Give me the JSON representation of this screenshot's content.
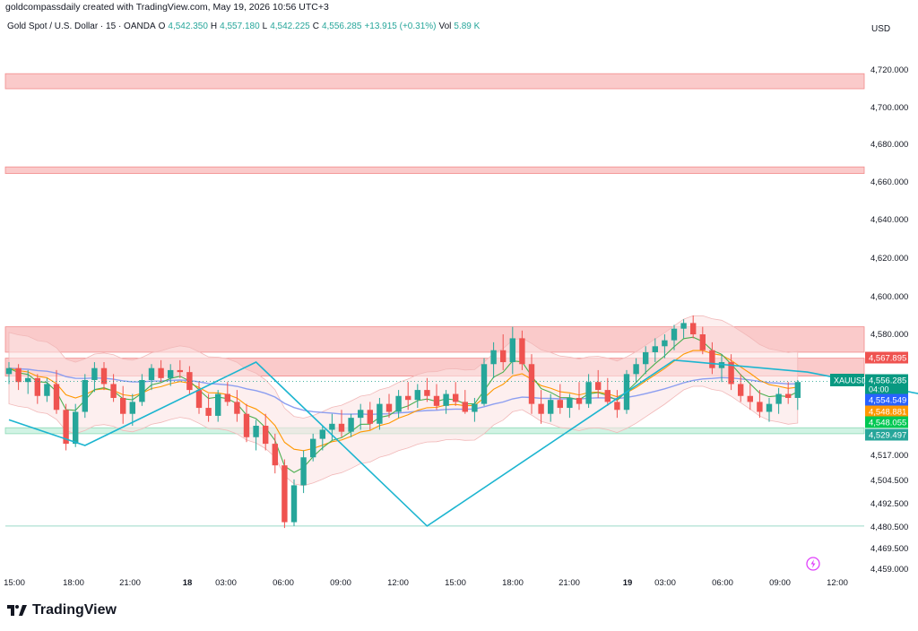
{
  "watermark": "goldcompassdaily created with TradingView.com, May 19, 2026 10:56 UTC+3",
  "header": {
    "symbol": "Gold Spot / U.S. Dollar · 15 · OANDA",
    "o_label": "O",
    "o_value": "4,542.350",
    "h_label": "H",
    "h_value": "4,557.180",
    "l_label": "L",
    "l_value": "4,542.225",
    "c_label": "C",
    "c_value": "4,556.285",
    "change": "+13.915 (+0.31%)",
    "vol_label": "Vol",
    "vol_value": "5.89 K"
  },
  "currency": "USD",
  "brand": "TradingView",
  "colors": {
    "up": "#26a69a",
    "down": "#ef5350",
    "zone_red": "#f7a7a7",
    "zone_green": "#b2ebd2",
    "bb_fill": "#fce4e4",
    "ma_green": "#4caf50",
    "ma_orange": "#ff9800",
    "ma_purple": "#8c9ef0",
    "zigzag": "#1cb5d0",
    "price_label": "#089981"
  },
  "chart_data": {
    "type": "candlestick",
    "symbol": "XAUUSD",
    "interval": "15",
    "y_ticks": [
      4459.0,
      4469.5,
      4480.5,
      4492.5,
      4504.5,
      4517.0,
      4529.497,
      4548.055,
      4548.881,
      4554.549,
      4556.285,
      4567.895,
      4580.0,
      4600.0,
      4620.0,
      4640.0,
      4660.0,
      4680.0,
      4700.0,
      4720.0
    ],
    "y_tick_labels": [
      "4,459.000",
      "4,469.500",
      "4,480.500",
      "4,492.500",
      "4,504.500",
      "4,517.000",
      "",
      "",
      "",
      "",
      "",
      "",
      "4,580.000",
      "4,600.000",
      "4,620.000",
      "4,640.000",
      "4,660.000",
      "4,680.000",
      "4,700.000",
      "4,720.000"
    ],
    "x_ticks": [
      "15:00",
      "18:00",
      "21:00",
      "18",
      "03:00",
      "06:00",
      "09:00",
      "12:00",
      "15:00",
      "18:00",
      "21:00",
      "19",
      "03:00",
      "06:00",
      "09:00",
      "12:00"
    ],
    "price_labels": [
      {
        "text": "4,567.895",
        "value": 4567.895,
        "color": "#ef5350"
      },
      {
        "text": "XAUUSD",
        "value": 4560.5,
        "color": "#089981"
      },
      {
        "text": "4,556.285",
        "value": 4556.285,
        "color": "#089981",
        "sub": "04:00"
      },
      {
        "text": "4,554.549",
        "value": 4554.549,
        "color": "#2962ff"
      },
      {
        "text": "4,548.881",
        "value": 4548.881,
        "color": "#ff9800"
      },
      {
        "text": "4,548.055",
        "value": 4548.055,
        "color": "#00c853"
      },
      {
        "text": "4,529.497",
        "value": 4529.497,
        "color": "#26a69a"
      }
    ],
    "zones": [
      {
        "from": 4710.0,
        "to": 4718.0,
        "color": "red"
      },
      {
        "from": 4664.5,
        "to": 4668.0,
        "color": "red"
      },
      {
        "from": 4571.0,
        "to": 4584.0,
        "color": "red"
      },
      {
        "from": 4559.0,
        "to": 4568.0,
        "color": "red"
      },
      {
        "from": 4530.0,
        "to": 4533.0,
        "color": "green"
      }
    ],
    "level_line": 4481.0,
    "zigzag": [
      [
        0,
        4537
      ],
      [
        8,
        4523
      ],
      [
        26,
        4566
      ],
      [
        44,
        4481
      ],
      [
        70,
        4567
      ],
      [
        84,
        4561
      ],
      [
        111,
        4536
      ],
      [
        131,
        4590
      ],
      [
        154,
        4660
      ]
    ],
    "ohlc": [
      [
        4560,
        4566,
        4555,
        4563
      ],
      [
        4563,
        4565,
        4552,
        4556
      ],
      [
        4556,
        4562,
        4550,
        4558
      ],
      [
        4558,
        4560,
        4545,
        4549
      ],
      [
        4549,
        4558,
        4546,
        4555
      ],
      [
        4555,
        4562,
        4540,
        4542
      ],
      [
        4542,
        4545,
        4520,
        4524
      ],
      [
        4524,
        4545,
        4522,
        4541
      ],
      [
        4541,
        4560,
        4538,
        4557
      ],
      [
        4557,
        4566,
        4551,
        4563
      ],
      [
        4563,
        4566,
        4552,
        4555
      ],
      [
        4555,
        4560,
        4546,
        4548
      ],
      [
        4548,
        4554,
        4535,
        4540
      ],
      [
        4540,
        4550,
        4534,
        4546
      ],
      [
        4546,
        4560,
        4544,
        4557
      ],
      [
        4557,
        4565,
        4552,
        4563
      ],
      [
        4563,
        4567,
        4556,
        4558
      ],
      [
        4558,
        4565,
        4554,
        4562
      ],
      [
        4562,
        4567,
        4558,
        4561
      ],
      [
        4561,
        4564,
        4550,
        4552
      ],
      [
        4552,
        4556,
        4540,
        4543
      ],
      [
        4543,
        4550,
        4536,
        4539
      ],
      [
        4539,
        4552,
        4536,
        4550
      ],
      [
        4550,
        4556,
        4544,
        4546
      ],
      [
        4546,
        4552,
        4536,
        4540
      ],
      [
        4540,
        4545,
        4525,
        4528
      ],
      [
        4528,
        4537,
        4520,
        4534
      ],
      [
        4534,
        4540,
        4520,
        4524
      ],
      [
        4524,
        4530,
        4508,
        4512
      ],
      [
        4512,
        4515,
        4480,
        4483
      ],
      [
        4483,
        4505,
        4481,
        4502
      ],
      [
        4502,
        4520,
        4498,
        4516
      ],
      [
        4516,
        4530,
        4514,
        4527
      ],
      [
        4527,
        4534,
        4520,
        4532
      ],
      [
        4532,
        4540,
        4526,
        4535
      ],
      [
        4535,
        4542,
        4528,
        4531
      ],
      [
        4531,
        4540,
        4528,
        4538
      ],
      [
        4538,
        4545,
        4532,
        4542
      ],
      [
        4542,
        4546,
        4532,
        4535
      ],
      [
        4535,
        4548,
        4532,
        4545
      ],
      [
        4545,
        4550,
        4538,
        4541
      ],
      [
        4541,
        4552,
        4538,
        4549
      ],
      [
        4549,
        4556,
        4542,
        4547
      ],
      [
        4547,
        4555,
        4543,
        4552
      ],
      [
        4552,
        4558,
        4546,
        4549
      ],
      [
        4549,
        4555,
        4542,
        4544
      ],
      [
        4544,
        4552,
        4540,
        4550
      ],
      [
        4550,
        4556,
        4544,
        4546
      ],
      [
        4546,
        4552,
        4540,
        4541
      ],
      [
        4541,
        4548,
        4536,
        4545
      ],
      [
        4545,
        4568,
        4544,
        4565
      ],
      [
        4565,
        4576,
        4558,
        4572
      ],
      [
        4572,
        4580,
        4562,
        4566
      ],
      [
        4566,
        4584,
        4560,
        4578
      ],
      [
        4578,
        4582,
        4562,
        4565
      ],
      [
        4565,
        4570,
        4540,
        4545
      ],
      [
        4545,
        4552,
        4535,
        4540
      ],
      [
        4540,
        4550,
        4536,
        4547
      ],
      [
        4547,
        4555,
        4540,
        4543
      ],
      [
        4543,
        4550,
        4538,
        4548
      ],
      [
        4548,
        4556,
        4542,
        4545
      ],
      [
        4545,
        4560,
        4543,
        4556
      ],
      [
        4556,
        4562,
        4548,
        4552
      ],
      [
        4552,
        4558,
        4544,
        4546
      ],
      [
        4546,
        4552,
        4538,
        4542
      ],
      [
        4542,
        4562,
        4540,
        4560
      ],
      [
        4560,
        4568,
        4556,
        4565
      ],
      [
        4565,
        4574,
        4560,
        4571
      ],
      [
        4571,
        4578,
        4566,
        4574
      ],
      [
        4574,
        4580,
        4568,
        4577
      ],
      [
        4577,
        4585,
        4572,
        4583
      ],
      [
        4583,
        4588,
        4578,
        4586
      ],
      [
        4586,
        4590,
        4578,
        4580
      ],
      [
        4580,
        4584,
        4570,
        4572
      ],
      [
        4572,
        4576,
        4560,
        4563
      ],
      [
        4563,
        4570,
        4556,
        4566
      ],
      [
        4566,
        4570,
        4552,
        4555
      ],
      [
        4555,
        4560,
        4546,
        4549
      ],
      [
        4549,
        4555,
        4542,
        4546
      ],
      [
        4546,
        4552,
        4538,
        4541
      ],
      [
        4541,
        4548,
        4536,
        4545
      ],
      [
        4545,
        4553,
        4540,
        4550
      ],
      [
        4550,
        4556,
        4545,
        4548
      ],
      [
        4548,
        4557,
        4542,
        4556
      ]
    ]
  }
}
